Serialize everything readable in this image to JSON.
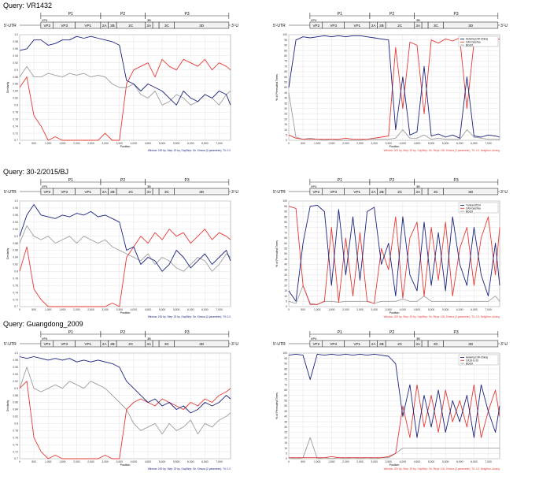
{
  "genome_map": {
    "utr5": "5'-UTR",
    "utr3": "3'-UTR",
    "vp4": "VP4",
    "regions": [
      "P1",
      "P2",
      "P3"
    ],
    "segments": [
      "VP2",
      "VP3",
      "VP1",
      "2A",
      "2B",
      "2C",
      "3A",
      "3C",
      "3D"
    ],
    "b3_label": "3B"
  },
  "x_tick_labels": [
    "0",
    "500",
    "1,000",
    "1,500",
    "2,000",
    "2,500",
    "3,000",
    "3,500",
    "4,000",
    "4,500",
    "5,000",
    "5,500",
    "6,000",
    "6,500",
    "7,000"
  ],
  "colors": {
    "blue": "#1a237e",
    "red": "#e53935",
    "gray": "#9e9e9e"
  },
  "queries": [
    {
      "label": "Query: VR1432"
    },
    {
      "label": "Query: 30-2/2015/BJ"
    },
    {
      "label": "Query: Guangdong_2009"
    }
  ],
  "chart_data": [
    {
      "type": "line",
      "panel": "similarity",
      "query": "VR1432",
      "xlabel": "Position",
      "ylabel": "Similarity",
      "xlim": [
        0,
        7400
      ],
      "ylim": [
        0.7,
        1.0
      ],
      "grid": true,
      "yticks": [
        "0.7",
        "0.72",
        "0.74",
        "0.76",
        "0.78",
        "0.8",
        "0.82",
        "0.84",
        "0.86",
        "0.88",
        "0.9",
        "0.92",
        "0.94",
        "0.96",
        "0.98",
        "1.0"
      ],
      "footnote": "Window: 200 bp, Step: 20 bp, GapStrip: On, Kimura (2-parameter), T/t: 2.0",
      "x": [
        0,
        250,
        500,
        750,
        1000,
        1250,
        1500,
        1750,
        2000,
        2250,
        2500,
        2750,
        3000,
        3250,
        3500,
        3750,
        4000,
        4250,
        4500,
        4750,
        5000,
        5250,
        5500,
        5750,
        6000,
        6250,
        6500,
        6750,
        7000,
        7250,
        7400
      ],
      "series": [
        {
          "color": "blue",
          "values": [
            0.955,
            0.96,
            0.985,
            0.985,
            0.97,
            0.975,
            0.985,
            0.985,
            0.995,
            0.99,
            0.995,
            0.99,
            0.985,
            0.98,
            0.97,
            0.87,
            0.86,
            0.84,
            0.86,
            0.85,
            0.84,
            0.82,
            0.8,
            0.84,
            0.82,
            0.81,
            0.83,
            0.82,
            0.84,
            0.83,
            0.8
          ]
        },
        {
          "color": "red",
          "values": [
            0.85,
            0.88,
            0.77,
            0.74,
            0.7,
            0.71,
            0.7,
            0.7,
            0.7,
            0.7,
            0.7,
            0.7,
            0.72,
            0.7,
            0.7,
            0.86,
            0.9,
            0.91,
            0.92,
            0.88,
            0.93,
            0.91,
            0.9,
            0.93,
            0.92,
            0.91,
            0.93,
            0.9,
            0.92,
            0.91,
            0.9
          ]
        },
        {
          "color": "gray",
          "values": [
            0.88,
            0.91,
            0.88,
            0.88,
            0.89,
            0.885,
            0.88,
            0.89,
            0.885,
            0.89,
            0.88,
            0.885,
            0.88,
            0.86,
            0.85,
            0.85,
            0.86,
            0.83,
            0.82,
            0.84,
            0.8,
            0.81,
            0.83,
            0.82,
            0.8,
            0.81,
            0.83,
            0.82,
            0.8,
            0.83,
            0.84
          ]
        }
      ]
    },
    {
      "type": "line",
      "panel": "bootscan",
      "query": "VR1432",
      "xlabel": "Position",
      "ylabel": "% of Permuted Trees",
      "xlim": [
        0,
        7400
      ],
      "ylim": [
        0,
        100
      ],
      "grid": true,
      "yticks": [
        "0",
        "5",
        "10",
        "15",
        "20",
        "25",
        "30",
        "35",
        "40",
        "45",
        "50",
        "55",
        "60",
        "65",
        "70",
        "75",
        "80",
        "85",
        "90",
        "95",
        "100"
      ],
      "legend": {
        "placement": "top-right",
        "entries": [
          "HeiwinL(CW-China)",
          "CAV-Guizhou",
          "BGGX"
        ]
      },
      "footnote": "Window: 200 bp, Step: 20 bp, GapStrip: On, Reps: 100, Kimura (2-parameter), T/t: 2.0, Neighbor-Joining",
      "x": [
        0,
        250,
        500,
        750,
        1000,
        1250,
        1500,
        1750,
        2000,
        2250,
        2500,
        2750,
        3000,
        3250,
        3500,
        3750,
        4000,
        4250,
        4500,
        4750,
        5000,
        5250,
        5500,
        5750,
        6000,
        6250,
        6500,
        6750,
        7000,
        7250,
        7400
      ],
      "series": [
        {
          "color": "blue",
          "values": [
            50,
            95,
            98,
            97,
            98,
            99,
            98,
            99,
            98,
            99,
            99,
            98,
            97,
            96,
            95,
            10,
            60,
            5,
            8,
            70,
            4,
            6,
            3,
            5,
            2,
            60,
            4,
            3,
            5,
            4,
            3
          ]
        },
        {
          "color": "red",
          "values": [
            5,
            2,
            1,
            1,
            1,
            1,
            1,
            1,
            2,
            1,
            1,
            1,
            2,
            3,
            4,
            88,
            30,
            93,
            90,
            25,
            95,
            92,
            96,
            94,
            97,
            30,
            93,
            95,
            94,
            95,
            96
          ]
        },
        {
          "color": "gray",
          "values": [
            45,
            3,
            1,
            2,
            1,
            0,
            1,
            0,
            0,
            0,
            0,
            1,
            1,
            1,
            1,
            2,
            10,
            2,
            2,
            5,
            1,
            2,
            1,
            1,
            1,
            10,
            3,
            2,
            1,
            1,
            1
          ]
        }
      ]
    },
    {
      "type": "line",
      "panel": "similarity",
      "query": "30-2/2015/BJ",
      "xlabel": "Position",
      "ylabel": "Similarity",
      "xlim": [
        0,
        7400
      ],
      "ylim": [
        0.7,
        1.0
      ],
      "grid": true,
      "yticks": [
        "0.7",
        "0.72",
        "0.74",
        "0.76",
        "0.78",
        "0.8",
        "0.82",
        "0.84",
        "0.86",
        "0.88",
        "0.9",
        "0.92",
        "0.94",
        "0.96",
        "0.98",
        "1.0"
      ],
      "footnote": "Window: 200 bp, Step: 20 bp, GapStrip: On, Kimura (2-parameter), T/t: 2.0",
      "x": [
        0,
        250,
        500,
        750,
        1000,
        1250,
        1500,
        1750,
        2000,
        2250,
        2500,
        2750,
        3000,
        3250,
        3500,
        3750,
        4000,
        4250,
        4500,
        4750,
        5000,
        5250,
        5500,
        5750,
        6000,
        6250,
        6500,
        6750,
        7000,
        7250,
        7400
      ],
      "series": [
        {
          "color": "blue",
          "values": [
            0.9,
            0.96,
            0.99,
            0.96,
            0.955,
            0.95,
            0.96,
            0.955,
            0.965,
            0.96,
            0.97,
            0.955,
            0.96,
            0.95,
            0.94,
            0.86,
            0.87,
            0.82,
            0.84,
            0.83,
            0.8,
            0.82,
            0.86,
            0.84,
            0.81,
            0.83,
            0.85,
            0.82,
            0.84,
            0.86,
            0.83
          ]
        },
        {
          "color": "red",
          "values": [
            0.8,
            0.87,
            0.75,
            0.72,
            0.7,
            0.7,
            0.7,
            0.7,
            0.7,
            0.7,
            0.7,
            0.7,
            0.7,
            0.71,
            0.7,
            0.84,
            0.87,
            0.9,
            0.88,
            0.91,
            0.89,
            0.92,
            0.9,
            0.91,
            0.88,
            0.9,
            0.92,
            0.89,
            0.91,
            0.9,
            0.89
          ]
        },
        {
          "color": "gray",
          "values": [
            0.88,
            0.93,
            0.9,
            0.89,
            0.9,
            0.88,
            0.89,
            0.9,
            0.88,
            0.9,
            0.89,
            0.88,
            0.89,
            0.87,
            0.86,
            0.85,
            0.84,
            0.83,
            0.85,
            0.82,
            0.84,
            0.83,
            0.81,
            0.8,
            0.82,
            0.84,
            0.83,
            0.8,
            0.82,
            0.85,
            0.84
          ]
        }
      ]
    },
    {
      "type": "line",
      "panel": "bootscan",
      "query": "30-2/2015/BJ",
      "xlabel": "Position",
      "ylabel": "% of Permuted Trees",
      "xlim": [
        0,
        7400
      ],
      "ylim": [
        0,
        100
      ],
      "grid": true,
      "yticks": [
        "0",
        "5",
        "10",
        "15",
        "20",
        "25",
        "30",
        "35",
        "40",
        "45",
        "50",
        "55",
        "60",
        "65",
        "70",
        "75",
        "80",
        "85",
        "90",
        "95",
        "100"
      ],
      "legend": {
        "placement": "top-right",
        "entries": [
          "Yunnan/2014",
          "CAV-Guizhou",
          "BGGX"
        ]
      },
      "footnote": "Window: 200 bp, Step: 20 bp, GapStrip: On, Reps: 100, Kimura (2-parameter), T/t: 2.0, Neighbor-Joining",
      "x": [
        0,
        250,
        500,
        750,
        1000,
        1250,
        1500,
        1750,
        2000,
        2250,
        2500,
        2750,
        3000,
        3250,
        3500,
        3750,
        4000,
        4250,
        4500,
        4750,
        5000,
        5250,
        5500,
        5750,
        6000,
        6250,
        6500,
        6750,
        7000,
        7250,
        7400
      ],
      "series": [
        {
          "color": "blue",
          "values": [
            15,
            5,
            60,
            95,
            96,
            90,
            20,
            92,
            30,
            85,
            25,
            90,
            94,
            40,
            60,
            10,
            85,
            30,
            15,
            80,
            20,
            70,
            15,
            85,
            40,
            20,
            75,
            30,
            10,
            60,
            20
          ]
        },
        {
          "color": "red",
          "values": [
            95,
            93,
            20,
            2,
            2,
            5,
            75,
            4,
            65,
            10,
            70,
            5,
            3,
            55,
            35,
            85,
            8,
            65,
            80,
            10,
            75,
            25,
            80,
            10,
            55,
            75,
            20,
            65,
            85,
            30,
            75
          ]
        },
        {
          "color": "gray",
          "values": [
            5,
            3,
            20,
            3,
            2,
            5,
            5,
            4,
            5,
            5,
            5,
            5,
            3,
            5,
            5,
            5,
            7,
            5,
            5,
            10,
            5,
            5,
            5,
            5,
            5,
            5,
            5,
            5,
            5,
            10,
            5
          ]
        }
      ]
    },
    {
      "type": "line",
      "panel": "similarity",
      "query": "Guangdong_2009",
      "xlabel": "Position",
      "ylabel": "Similarity",
      "xlim": [
        0,
        7400
      ],
      "ylim": [
        0.7,
        1.0
      ],
      "grid": true,
      "yticks": [
        "0.7",
        "0.72",
        "0.74",
        "0.76",
        "0.78",
        "0.8",
        "0.82",
        "0.84",
        "0.86",
        "0.88",
        "0.9",
        "0.92",
        "0.94",
        "0.96",
        "0.98",
        "1.0"
      ],
      "footnote": "Window: 200 bp, Step: 20 bp, GapStrip: On, Kimura (2-parameter), T/t: 2.0",
      "x": [
        0,
        250,
        500,
        750,
        1000,
        1250,
        1500,
        1750,
        2000,
        2250,
        2500,
        2750,
        3000,
        3250,
        3500,
        3750,
        4000,
        4250,
        4500,
        4750,
        5000,
        5250,
        5500,
        5750,
        6000,
        6250,
        6500,
        6750,
        7000,
        7250,
        7400
      ],
      "series": [
        {
          "color": "blue",
          "values": [
            0.99,
            0.985,
            0.99,
            0.985,
            0.98,
            0.985,
            0.98,
            0.985,
            0.975,
            0.98,
            0.975,
            0.98,
            0.975,
            0.97,
            0.96,
            0.92,
            0.9,
            0.88,
            0.86,
            0.87,
            0.85,
            0.86,
            0.84,
            0.85,
            0.83,
            0.84,
            0.86,
            0.85,
            0.86,
            0.88,
            0.87
          ]
        },
        {
          "color": "red",
          "values": [
            0.9,
            0.92,
            0.76,
            0.72,
            0.7,
            0.71,
            0.7,
            0.7,
            0.7,
            0.7,
            0.7,
            0.7,
            0.71,
            0.7,
            0.7,
            0.84,
            0.86,
            0.87,
            0.86,
            0.85,
            0.87,
            0.86,
            0.85,
            0.84,
            0.86,
            0.85,
            0.87,
            0.86,
            0.88,
            0.89,
            0.9
          ]
        },
        {
          "color": "gray",
          "values": [
            0.9,
            0.96,
            0.9,
            0.89,
            0.9,
            0.91,
            0.9,
            0.92,
            0.91,
            0.9,
            0.92,
            0.91,
            0.9,
            0.88,
            0.86,
            0.84,
            0.8,
            0.78,
            0.79,
            0.8,
            0.77,
            0.8,
            0.78,
            0.79,
            0.81,
            0.77,
            0.8,
            0.79,
            0.81,
            0.82,
            0.83
          ]
        }
      ]
    },
    {
      "type": "line",
      "panel": "bootscan",
      "query": "Guangdong_2009",
      "xlabel": "Position",
      "ylabel": "% of Permuted Trees",
      "xlim": [
        0,
        7400
      ],
      "ylim": [
        0,
        100
      ],
      "grid": true,
      "yticks": [
        "0",
        "5",
        "10",
        "15",
        "20",
        "25",
        "30",
        "35",
        "40",
        "45",
        "50",
        "55",
        "60",
        "65",
        "70",
        "75",
        "80",
        "85",
        "90",
        "95",
        "100"
      ],
      "legend": {
        "placement": "top-right",
        "entries": [
          "HeiwinL(CW-China)",
          "CA16-G-10",
          "BGGX"
        ]
      },
      "footnote": "Window: 200 bp, Step: 20 bp, GapStrip: On, Reps: 100, Kimura (2-parameter), T/t: 2.0, Neighbor-Joining",
      "x": [
        0,
        250,
        500,
        750,
        1000,
        1250,
        1500,
        1750,
        2000,
        2250,
        2500,
        2750,
        3000,
        3250,
        3500,
        3750,
        4000,
        4250,
        4500,
        4750,
        5000,
        5250,
        5500,
        5750,
        6000,
        6250,
        6500,
        6750,
        7000,
        7250,
        7400
      ],
      "series": [
        {
          "color": "blue",
          "values": [
            98,
            99,
            98,
            75,
            99,
            98,
            99,
            98,
            99,
            98,
            99,
            98,
            99,
            98,
            97,
            90,
            40,
            70,
            20,
            60,
            30,
            65,
            25,
            55,
            35,
            60,
            20,
            70,
            45,
            25,
            50
          ]
        },
        {
          "color": "red",
          "values": [
            1,
            1,
            1,
            1,
            1,
            1,
            2,
            1,
            1,
            1,
            1,
            1,
            1,
            1,
            2,
            5,
            50,
            20,
            70,
            30,
            60,
            25,
            65,
            35,
            55,
            30,
            70,
            20,
            45,
            65,
            40
          ]
        },
        {
          "color": "gray",
          "values": [
            1,
            0,
            1,
            20,
            0,
            1,
            0,
            1,
            0,
            1,
            0,
            1,
            0,
            1,
            1,
            5,
            10,
            10,
            10,
            10,
            10,
            10,
            10,
            10,
            10,
            10,
            10,
            10,
            10,
            10,
            10
          ]
        }
      ]
    }
  ]
}
